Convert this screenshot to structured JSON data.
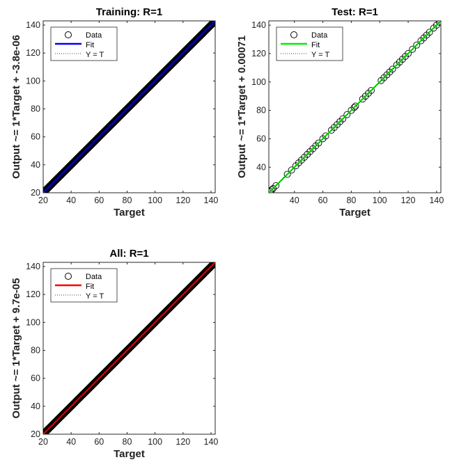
{
  "colors": {
    "training_fit": "#0000ff",
    "test_fit": "#00ee00",
    "all_fit": "#ff0000",
    "identity_line": "#000000",
    "data_marker": "#000000"
  },
  "chart_data": [
    {
      "type": "scatter",
      "title": "Training: R=1",
      "xlabel": "Target",
      "ylabel": "Output ~= 1*Target + -3.8e-06",
      "xlim": [
        20,
        143
      ],
      "ylim": [
        20,
        143
      ],
      "xticks": [
        20,
        40,
        60,
        80,
        100,
        120,
        140
      ],
      "yticks": [
        20,
        40,
        60,
        80,
        100,
        120,
        140
      ],
      "grid": false,
      "legend_position": "top-left",
      "legend": [
        "Data",
        "Fit",
        "Y = T"
      ],
      "fit": {
        "slope": 1,
        "intercept": -3.8e-06,
        "color": "#0000ff"
      },
      "data": {
        "pattern": "dense",
        "x_range": [
          21,
          142
        ]
      }
    },
    {
      "type": "scatter",
      "title": "Test: R=1",
      "xlabel": "Target",
      "ylabel": "Output ~= 1*Target + 0.00071",
      "xlim": [
        22,
        143
      ],
      "ylim": [
        22,
        143
      ],
      "xticks": [
        40,
        60,
        80,
        100,
        120,
        140
      ],
      "yticks": [
        40,
        60,
        80,
        100,
        120,
        140
      ],
      "grid": false,
      "legend_position": "top-left",
      "legend": [
        "Data",
        "Fit",
        "Y = T"
      ],
      "fit": {
        "slope": 1,
        "intercept": 0.00071,
        "color": "#00ee00"
      },
      "data": {
        "pattern": "points",
        "x": [
          23,
          24,
          25,
          27,
          35,
          38,
          41,
          43,
          45,
          47,
          49,
          51,
          53,
          55,
          57,
          60,
          62,
          66,
          68,
          70,
          72,
          74,
          77,
          80,
          82,
          83,
          88,
          90,
          92,
          94,
          101,
          103,
          105,
          107,
          109,
          112,
          114,
          116,
          118,
          120,
          123,
          126,
          129,
          131,
          133,
          135,
          138,
          140,
          142
        ]
      }
    },
    {
      "type": "scatter",
      "title": "All: R=1",
      "xlabel": "Target",
      "ylabel": "Output ~= 1*Target + 9.7e-05",
      "xlim": [
        20,
        143
      ],
      "ylim": [
        20,
        143
      ],
      "xticks": [
        20,
        40,
        60,
        80,
        100,
        120,
        140
      ],
      "yticks": [
        20,
        40,
        60,
        80,
        100,
        120,
        140
      ],
      "grid": false,
      "legend_position": "top-left",
      "legend": [
        "Data",
        "Fit",
        "Y = T"
      ],
      "fit": {
        "slope": 1,
        "intercept": 9.7e-05,
        "color": "#ff0000"
      },
      "data": {
        "pattern": "dense",
        "x_range": [
          21,
          142
        ]
      }
    }
  ]
}
